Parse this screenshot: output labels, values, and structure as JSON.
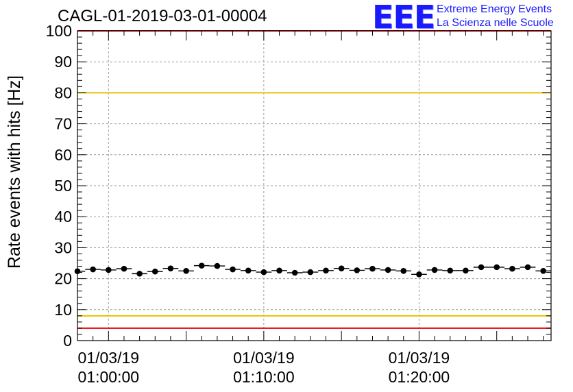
{
  "header": {
    "run_id": "CAGL-01-2019-03-01-00004",
    "logo_mark": "EEE",
    "logo_line1": "Extreme Energy Events",
    "logo_line2": "La Scienza nelle Scuole"
  },
  "chart_data": {
    "type": "scatter",
    "title": "CAGL-01-2019-03-01-00004",
    "xlabel": "",
    "ylabel": "Rate events with hits [Hz]",
    "ylim": [
      0,
      100
    ],
    "y_ticks": [
      0,
      10,
      20,
      30,
      40,
      50,
      60,
      70,
      80,
      90,
      100
    ],
    "xlim": [
      "00:58:00",
      "01:28:30"
    ],
    "x_ticks": [
      {
        "time": "01:00:00",
        "date": "01/03/19"
      },
      {
        "time": "01:10:00",
        "date": "01/03/19"
      },
      {
        "time": "01:20:00",
        "date": "01/03/19"
      }
    ],
    "grid": true,
    "bin_width_s": 60,
    "series": [
      {
        "x": [
          "00:58:00",
          "00:59:00",
          "01:00:00",
          "01:01:00",
          "01:02:00",
          "01:03:00",
          "01:04:00",
          "01:05:00",
          "01:06:00",
          "01:07:00",
          "01:08:00",
          "01:09:00",
          "01:10:00",
          "01:11:00",
          "01:12:00",
          "01:13:00",
          "01:14:00",
          "01:15:00",
          "01:16:00",
          "01:17:00",
          "01:18:00",
          "01:19:00",
          "01:20:00",
          "01:21:00",
          "01:22:00",
          "01:23:00",
          "01:24:00",
          "01:25:00",
          "01:26:00",
          "01:27:00",
          "01:28:00"
        ],
        "y": [
          22.4,
          23.0,
          22.8,
          23.2,
          21.6,
          22.3,
          23.3,
          22.5,
          24.2,
          24.1,
          23.0,
          22.6,
          22.1,
          22.6,
          21.9,
          22.1,
          22.6,
          23.3,
          22.7,
          23.2,
          22.8,
          22.5,
          21.4,
          22.8,
          22.6,
          22.6,
          23.7,
          23.7,
          23.2,
          23.7,
          22.5
        ],
        "marker": "circle",
        "color": "#000000"
      }
    ],
    "reference_lines": [
      {
        "y": 80,
        "color": "#e6c200"
      },
      {
        "y": 8,
        "color": "#e6c200"
      },
      {
        "y": 100,
        "color": "#e8000b"
      },
      {
        "y": 4,
        "color": "#e8000b"
      }
    ]
  }
}
